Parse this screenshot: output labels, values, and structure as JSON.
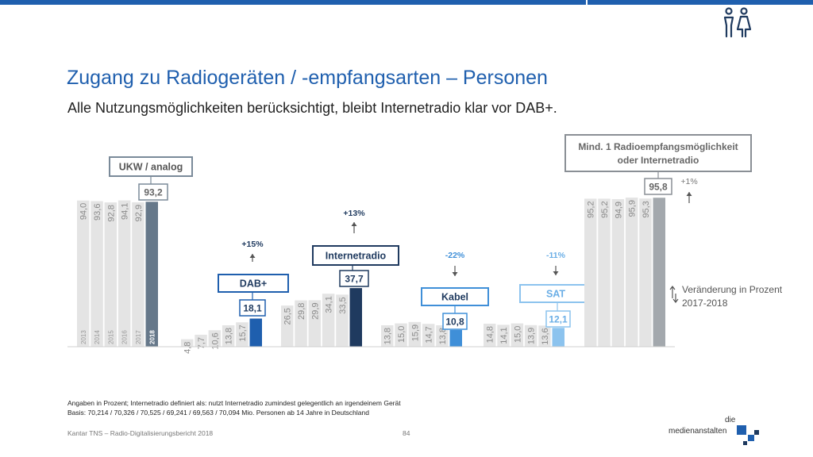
{
  "header": {
    "title": "Zugang zu Radiogeräten / -empfangsarten – Personen",
    "subtitle": "Alle Nutzungsmöglichkeiten berücksichtigt, bleibt Internetradio klar vor DAB+.",
    "people_icon": "people-icon"
  },
  "colors": {
    "topbar": "#1f5fae",
    "accent_dark": "#1f3a5f",
    "grey_bar": "#e4e4e4",
    "grey_last": "#a3a8ad"
  },
  "chart_data": {
    "type": "bar",
    "years": [
      "2013",
      "2014",
      "2015",
      "2016",
      "2017",
      "2018"
    ],
    "ylim": [
      0,
      100
    ],
    "groups": [
      {
        "name": "UKW / analog",
        "values": [
          94.0,
          93.6,
          92.8,
          94.1,
          92.9,
          93.2
        ],
        "labels": [
          "94,0",
          "93,6",
          "92,8",
          "94,1",
          "92,9",
          "93,2"
        ],
        "change": "",
        "color": "#66788a",
        "show_years": true
      },
      {
        "name": "DAB+",
        "values": [
          4.8,
          7.7,
          10.6,
          13.8,
          15.7,
          18.1
        ],
        "labels": [
          "4,8",
          "7,7",
          "10,6",
          "13,8",
          "15,7",
          "18,1"
        ],
        "change": "+15%",
        "color": "#1f5fae",
        "show_years": false
      },
      {
        "name": "Internetradio",
        "values": [
          26.5,
          29.8,
          29.9,
          34.1,
          33.5,
          37.7
        ],
        "labels": [
          "26,5",
          "29,8",
          "29,9",
          "34,1",
          "33,5",
          "37,7"
        ],
        "change": "+13%",
        "color": "#1f3a5f",
        "show_years": false
      },
      {
        "name": "Kabel",
        "values": [
          13.8,
          15.0,
          15.9,
          14.7,
          13.8,
          10.8
        ],
        "labels": [
          "13,8",
          "15,0",
          "15,9",
          "14,7",
          "13,8",
          "10,8"
        ],
        "change": "-22%",
        "color": "#3f8fd8",
        "show_years": false
      },
      {
        "name": "SAT",
        "values": [
          14.8,
          14.1,
          15.0,
          13.9,
          13.6,
          12.1
        ],
        "labels": [
          "14,8",
          "14,1",
          "15,0",
          "13,9",
          "13,6",
          "12,1"
        ],
        "change": "-11%",
        "color": "#8cc3ee",
        "show_years": false
      },
      {
        "name": "Mind. 1 Radioempfangsmöglichkeit oder Internetradio",
        "values": [
          95.2,
          95.2,
          94.9,
          95.9,
          95.3,
          95.8
        ],
        "labels": [
          "95,2",
          "95,2",
          "94,9",
          "95,9",
          "95,3",
          "95,8"
        ],
        "change": "+1%",
        "color": "#a3a8ad",
        "show_years": false
      }
    ],
    "legend": "Veränderung in Prozent 2017-2018"
  },
  "footnotes": [
    "Angaben in Prozent; Internetradio definiert als: nutzt Internetradio zumindest gelegentlich an irgendeinem Gerät",
    "Basis: 70,214 / 70,326 / 70,525 / 69,241 / 69,563 / 70,094 Mio. Personen ab 14 Jahre in Deutschland"
  ],
  "footer": {
    "source": "Kantar TNS – Radio-Digitalisierungsbericht 2018",
    "page": "84"
  },
  "logo": {
    "line1": "die",
    "line2": "medienanstalten"
  }
}
